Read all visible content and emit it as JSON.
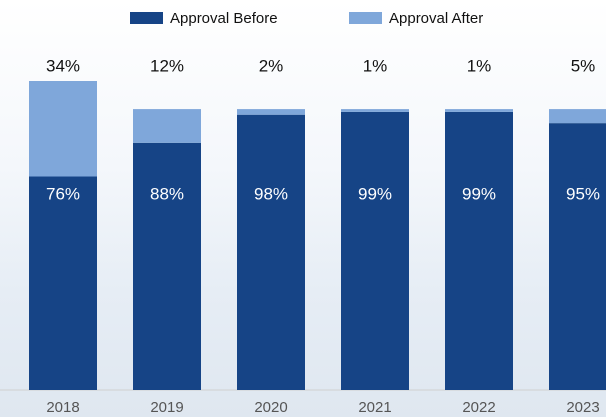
{
  "chart_data": {
    "type": "stacked_bar",
    "categories": [
      "2018",
      "2019",
      "2020",
      "2021",
      "2022",
      "2023"
    ],
    "series": [
      {
        "name": "Approval Before",
        "color": "#164486",
        "values": [
          76,
          88,
          98,
          99,
          99,
          95
        ],
        "value_labels": [
          "76%",
          "88%",
          "98%",
          "99%",
          "99%",
          "95%"
        ]
      },
      {
        "name": "Approval After",
        "color": "#7fa7da",
        "values": [
          34,
          12,
          2,
          1,
          1,
          5
        ],
        "value_labels": [
          "34%",
          "12%",
          "2%",
          "1%",
          "1%",
          "5%"
        ]
      }
    ],
    "ylim": [
      0,
      110
    ]
  }
}
